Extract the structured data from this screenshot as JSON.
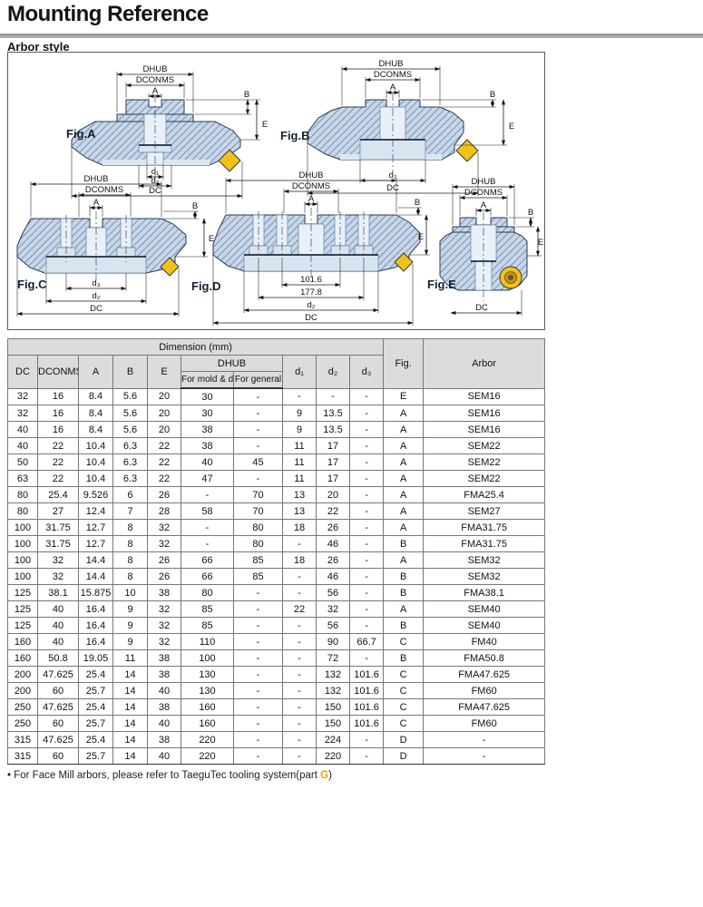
{
  "page": {
    "title": "Mounting Reference",
    "subtitle": "Arbor style"
  },
  "colors": {
    "insert_yellow": "#f2c118",
    "part_g_orange": "#f0a000",
    "body_blue": "#c7d6e9",
    "hatch_blue": "#3d5f86",
    "header_gray": "#dcdcdc"
  },
  "figures": {
    "labels": {
      "a": "Fig.A",
      "b": "Fig.B",
      "c": "Fig.C",
      "d": "Fig.D",
      "e": "Fig.E"
    },
    "dims": {
      "dhub": "DHUB",
      "dconms": "DCONMS",
      "a": "A",
      "b": "B",
      "e": "E",
      "d1": "d₁",
      "d2": "d₂",
      "d3": "d₃",
      "dc": "DC",
      "bolt_circle_inner": "101.6",
      "bolt_circle_outer": "177.8"
    }
  },
  "table": {
    "header": {
      "dimension_group": "Dimension (mm)",
      "dc": "DC",
      "dconms": "DCONMS",
      "a": "A",
      "b": "B",
      "e": "E",
      "dhub": "DHUB",
      "dhub_mold": "For mold & die",
      "dhub_general": "For general",
      "d1": "d₁",
      "d2": "d₂",
      "d3": "d₃",
      "fig": "Fig.",
      "arbor": "Arbor"
    },
    "rows": [
      [
        "32",
        "16",
        "8.4",
        "5.6",
        "20",
        "30",
        "-",
        "-",
        "-",
        "-",
        "E",
        "SEM16"
      ],
      [
        "32",
        "16",
        "8.4",
        "5.6",
        "20",
        "30",
        "-",
        "9",
        "13.5",
        "-",
        "A",
        "SEM16"
      ],
      [
        "40",
        "16",
        "8.4",
        "5.6",
        "20",
        "38",
        "-",
        "9",
        "13.5",
        "-",
        "A",
        "SEM16"
      ],
      [
        "40",
        "22",
        "10.4",
        "6.3",
        "22",
        "38",
        "-",
        "11",
        "17",
        "-",
        "A",
        "SEM22"
      ],
      [
        "50",
        "22",
        "10.4",
        "6.3",
        "22",
        "40",
        "45",
        "11",
        "17",
        "-",
        "A",
        "SEM22"
      ],
      [
        "63",
        "22",
        "10.4",
        "6.3",
        "22",
        "47",
        "-",
        "11",
        "17",
        "-",
        "A",
        "SEM22"
      ],
      [
        "80",
        "25.4",
        "9.526",
        "6",
        "26",
        "-",
        "70",
        "13",
        "20",
        "-",
        "A",
        "FMA25.4"
      ],
      [
        "80",
        "27",
        "12.4",
        "7",
        "28",
        "58",
        "70",
        "13",
        "22",
        "-",
        "A",
        "SEM27"
      ],
      [
        "100",
        "31.75",
        "12.7",
        "8",
        "32",
        "-",
        "80",
        "18",
        "26",
        "-",
        "A",
        "FMA31.75"
      ],
      [
        "100",
        "31.75",
        "12.7",
        "8",
        "32",
        "-",
        "80",
        "-",
        "46",
        "-",
        "B",
        "FMA31.75"
      ],
      [
        "100",
        "32",
        "14.4",
        "8",
        "26",
        "66",
        "85",
        "18",
        "26",
        "-",
        "A",
        "SEM32"
      ],
      [
        "100",
        "32",
        "14.4",
        "8",
        "26",
        "66",
        "85",
        "-",
        "46",
        "-",
        "B",
        "SEM32"
      ],
      [
        "125",
        "38.1",
        "15.875",
        "10",
        "38",
        "80",
        "-",
        "-",
        "56",
        "-",
        "B",
        "FMA38.1"
      ],
      [
        "125",
        "40",
        "16.4",
        "9",
        "32",
        "85",
        "-",
        "22",
        "32",
        "-",
        "A",
        "SEM40"
      ],
      [
        "125",
        "40",
        "16.4",
        "9",
        "32",
        "85",
        "-",
        "-",
        "56",
        "-",
        "B",
        "SEM40"
      ],
      [
        "160",
        "40",
        "16.4",
        "9",
        "32",
        "110",
        "-",
        "-",
        "90",
        "66.7",
        "C",
        "FM40"
      ],
      [
        "160",
        "50.8",
        "19.05",
        "11",
        "38",
        "100",
        "-",
        "-",
        "72",
        "-",
        "B",
        "FMA50.8"
      ],
      [
        "200",
        "47.625",
        "25.4",
        "14",
        "38",
        "130",
        "-",
        "-",
        "132",
        "101.6",
        "C",
        "FMA47.625"
      ],
      [
        "200",
        "60",
        "25.7",
        "14",
        "40",
        "130",
        "-",
        "-",
        "132",
        "101.6",
        "C",
        "FM60"
      ],
      [
        "250",
        "47.625",
        "25.4",
        "14",
        "38",
        "160",
        "-",
        "-",
        "150",
        "101.6",
        "C",
        "FMA47.625"
      ],
      [
        "250",
        "60",
        "25.7",
        "14",
        "40",
        "160",
        "-",
        "-",
        "150",
        "101.6",
        "C",
        "FM60"
      ],
      [
        "315",
        "47.625",
        "25.4",
        "14",
        "38",
        "220",
        "-",
        "-",
        "224",
        "-",
        "D",
        "-"
      ],
      [
        "315",
        "60",
        "25.7",
        "14",
        "40",
        "220",
        "-",
        "-",
        "220",
        "-",
        "D",
        "-"
      ]
    ]
  },
  "footnote": {
    "bullet": "•",
    "text_before": "For Face Mill arbors, please refer to TaeguTec tooling system(part ",
    "part": "G",
    "text_after": ")"
  }
}
